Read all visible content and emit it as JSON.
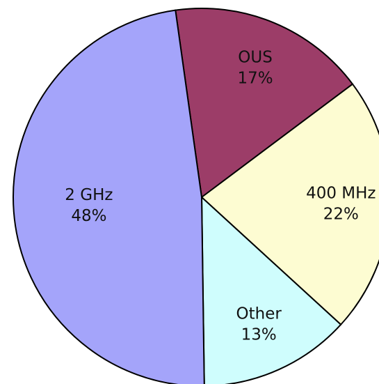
{
  "chart_data": {
    "type": "pie",
    "categories": [
      "OUS",
      "400 MHz",
      "Other",
      "2 GHz"
    ],
    "values": [
      17,
      22,
      13,
      48
    ],
    "value_labels": [
      "17%",
      "22%",
      "13%",
      "48%"
    ],
    "colors": [
      "#9c3d68",
      "#fdfcd2",
      "#cffdfd",
      "#a4a4fa"
    ]
  }
}
